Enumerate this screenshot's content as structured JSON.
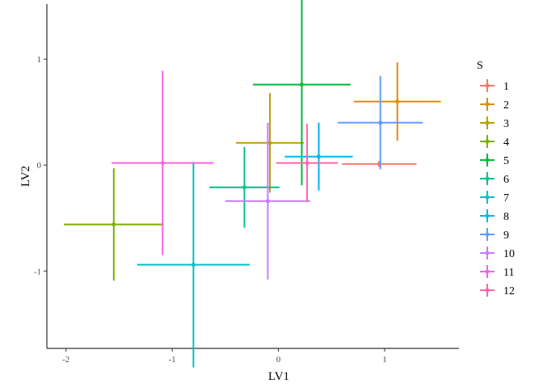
{
  "chart_data": {
    "type": "scatter",
    "x_label": "LV1",
    "y_label": "LV2",
    "legend_title": "S",
    "xlim": [
      -2.18,
      1.7
    ],
    "ylim": [
      -1.73,
      1.52
    ],
    "xticks": [
      -2,
      -1,
      0,
      1
    ],
    "yticks": [
      -1,
      0,
      1
    ],
    "grid": false,
    "legend_position": "right",
    "series": [
      {
        "name": "1",
        "color": "#F8766D",
        "x": [
          0.95
        ],
        "values": [
          0.01
        ],
        "xerr": [
          0.35
        ],
        "yerr": [
          0.03
        ]
      },
      {
        "name": "2",
        "color": "#DE8C00",
        "x": [
          1.12
        ],
        "values": [
          0.6
        ],
        "xerr": [
          0.41
        ],
        "yerr": [
          0.37
        ]
      },
      {
        "name": "3",
        "color": "#B79F00",
        "x": [
          -0.08
        ],
        "values": [
          0.21
        ],
        "xerr": [
          0.32
        ],
        "yerr": [
          0.47
        ]
      },
      {
        "name": "4",
        "color": "#7CAE00",
        "x": [
          -1.55
        ],
        "values": [
          -0.56
        ],
        "xerr": [
          0.47
        ],
        "yerr": [
          0.53
        ]
      },
      {
        "name": "5",
        "color": "#00BA38",
        "x": [
          0.22
        ],
        "values": [
          0.76
        ],
        "xerr": [
          0.46
        ],
        "yerr": [
          0.95
        ]
      },
      {
        "name": "6",
        "color": "#00C08B",
        "x": [
          -0.32
        ],
        "values": [
          -0.21
        ],
        "xerr": [
          0.33
        ],
        "yerr": [
          0.38
        ]
      },
      {
        "name": "7",
        "color": "#00BFC4",
        "x": [
          -0.8
        ],
        "values": [
          -0.94
        ],
        "xerr": [
          0.53
        ],
        "yerr": [
          0.97
        ]
      },
      {
        "name": "8",
        "color": "#00B4F0",
        "x": [
          0.38
        ],
        "values": [
          0.08
        ],
        "xerr": [
          0.32
        ],
        "yerr": [
          0.32
        ]
      },
      {
        "name": "9",
        "color": "#619CFF",
        "x": [
          0.96
        ],
        "values": [
          0.4
        ],
        "xerr": [
          0.4
        ],
        "yerr": [
          0.44
        ]
      },
      {
        "name": "10",
        "color": "#C77CFF",
        "x": [
          -0.1
        ],
        "values": [
          -0.34
        ],
        "xerr": [
          0.4
        ],
        "yerr": [
          0.74
        ]
      },
      {
        "name": "11",
        "color": "#F564E3",
        "x": [
          -1.09
        ],
        "values": [
          0.02
        ],
        "xerr": [
          0.48
        ],
        "yerr": [
          0.87
        ]
      },
      {
        "name": "12",
        "color": "#FF64B0",
        "x": [
          0.27
        ],
        "values": [
          0.02
        ],
        "xerr": [
          0.29
        ],
        "yerr": [
          0.37
        ]
      }
    ]
  }
}
